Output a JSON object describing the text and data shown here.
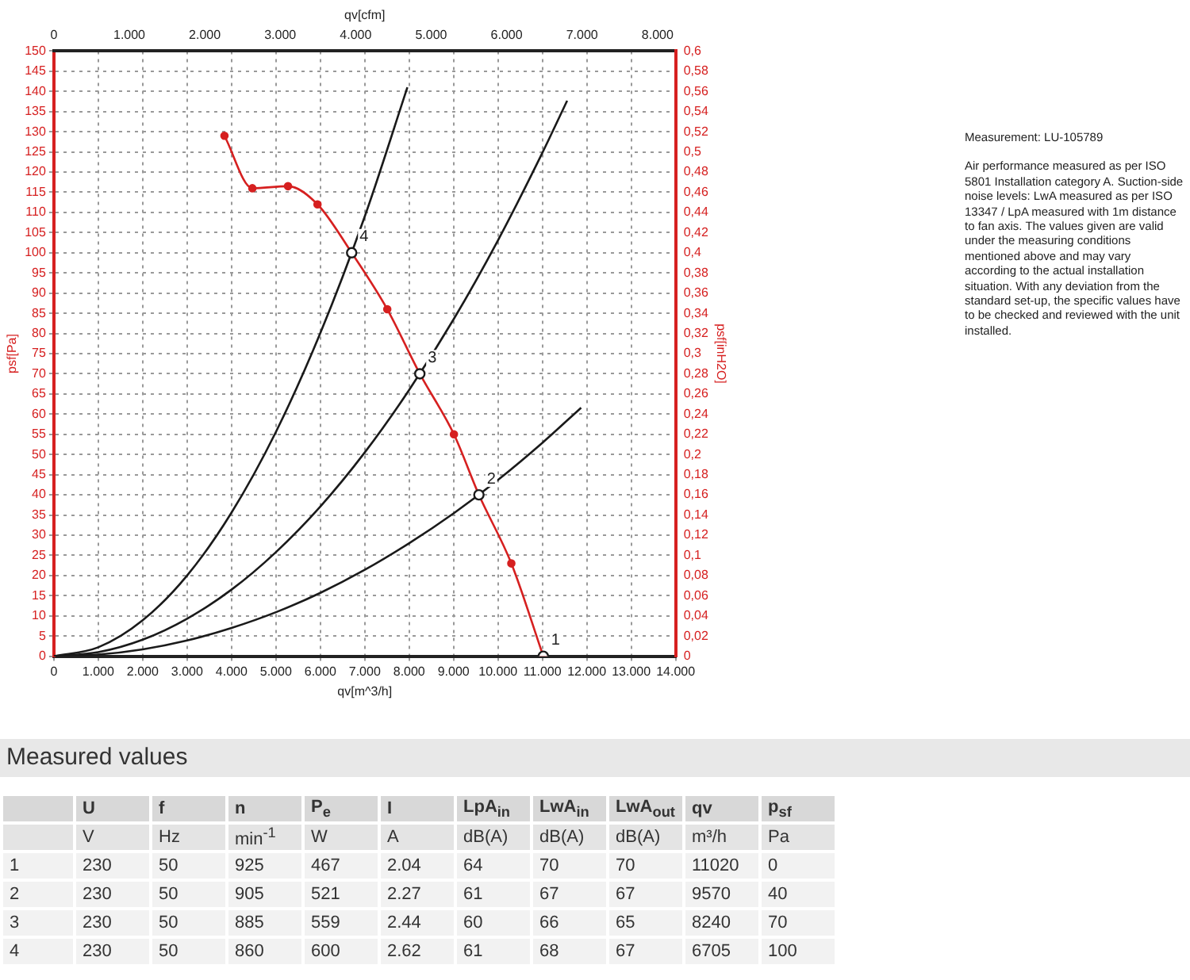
{
  "chart_data": {
    "type": "line",
    "xlabel": "qv[m^3/h]",
    "x2label": "qv[cfm]",
    "ylabel": "psf[Pa]",
    "y2label": "psf[inH2O]",
    "xlim": [
      0,
      14000
    ],
    "xticks": [
      0,
      {
        "value": 1000,
        "label": "1.000"
      },
      {
        "value": 2000,
        "label": "2.000"
      },
      {
        "value": 3000,
        "label": "3.000"
      },
      {
        "value": 4000,
        "label": "4.000"
      },
      {
        "value": 5000,
        "label": "5.000"
      },
      {
        "value": 6000,
        "label": "6.000"
      },
      {
        "value": 7000,
        "label": "7.000"
      },
      {
        "value": 8000,
        "label": "8.000"
      },
      {
        "value": 9000,
        "label": "9.000"
      },
      {
        "value": 10000,
        "label": "10.000"
      },
      {
        "value": 11000,
        "label": "11.000"
      },
      {
        "value": 12000,
        "label": "12.000"
      },
      {
        "value": 13000,
        "label": "13.000"
      },
      {
        "value": 14000,
        "label": "14.000"
      }
    ],
    "x2lim": [
      0,
      8240
    ],
    "x2ticks": [
      0,
      {
        "value": 1000,
        "label": "1.000"
      },
      {
        "value": 2000,
        "label": "2.000"
      },
      {
        "value": 3000,
        "label": "3.000"
      },
      {
        "value": 4000,
        "label": "4.000"
      },
      {
        "value": 5000,
        "label": "5.000"
      },
      {
        "value": 6000,
        "label": "6.000"
      },
      {
        "value": 7000,
        "label": "7.000"
      },
      {
        "value": 8000,
        "label": "8.000"
      }
    ],
    "ylim": [
      0,
      150
    ],
    "yticks": [
      0,
      5,
      10,
      15,
      20,
      25,
      30,
      35,
      40,
      45,
      50,
      55,
      60,
      65,
      70,
      75,
      80,
      85,
      90,
      95,
      100,
      105,
      110,
      115,
      120,
      125,
      130,
      135,
      140,
      145,
      150
    ],
    "y2lim": [
      0,
      0.6
    ],
    "y2ticks": [
      0,
      {
        "value": 0.02,
        "label": "0,02"
      },
      {
        "value": 0.04,
        "label": "0,04"
      },
      {
        "value": 0.06,
        "label": "0,06"
      },
      {
        "value": 0.08,
        "label": "0,08"
      },
      {
        "value": 0.1,
        "label": "0,1"
      },
      {
        "value": 0.12,
        "label": "0,12"
      },
      {
        "value": 0.14,
        "label": "0,14"
      },
      {
        "value": 0.16,
        "label": "0,16"
      },
      {
        "value": 0.18,
        "label": "0,18"
      },
      {
        "value": 0.2,
        "label": "0,2"
      },
      {
        "value": 0.22,
        "label": "0,22"
      },
      {
        "value": 0.24,
        "label": "0,24"
      },
      {
        "value": 0.26,
        "label": "0,26"
      },
      {
        "value": 0.28,
        "label": "0,28"
      },
      {
        "value": 0.3,
        "label": "0,3"
      },
      {
        "value": 0.32,
        "label": "0,32"
      },
      {
        "value": 0.34,
        "label": "0,34"
      },
      {
        "value": 0.36,
        "label": "0,36"
      },
      {
        "value": 0.38,
        "label": "0,38"
      },
      {
        "value": 0.4,
        "label": "0,4"
      },
      {
        "value": 0.42,
        "label": "0,42"
      },
      {
        "value": 0.44,
        "label": "0,44"
      },
      {
        "value": 0.46,
        "label": "0,46"
      },
      {
        "value": 0.48,
        "label": "0,48"
      },
      {
        "value": 0.5,
        "label": "0,5"
      },
      {
        "value": 0.52,
        "label": "0,52"
      },
      {
        "value": 0.54,
        "label": "0,54"
      },
      {
        "value": 0.56,
        "label": "0,56"
      },
      {
        "value": 0.58,
        "label": "0,58"
      },
      {
        "value": 0.6,
        "label": "0,6"
      }
    ],
    "grid": true,
    "legend": false,
    "series": [
      {
        "type": "line",
        "color": "#d62020",
        "marker": "circle",
        "x": [
          3841,
          4469,
          5272,
          5936,
          6705,
          7507,
          8240,
          9008,
          9570,
          10300,
          11020
        ],
        "values": [
          129,
          116,
          116.5,
          112,
          100,
          86,
          70,
          55,
          40,
          23,
          0
        ]
      },
      {
        "type": "line",
        "color": "#1a1a1a",
        "marker": "none",
        "x": [
          0,
          1000,
          2000,
          3000,
          4000,
          5000,
          6000,
          7000,
          7960
        ],
        "values": [
          0,
          2.2,
          8.9,
          20,
          35.6,
          55.6,
          80.1,
          109,
          141
        ]
      },
      {
        "type": "line",
        "color": "#1a1a1a",
        "marker": "none",
        "x": [
          0,
          1000,
          2000,
          3000,
          4000,
          5000,
          6000,
          7000,
          8000,
          9000,
          10000,
          11000,
          11557
        ],
        "values": [
          0,
          1,
          4.1,
          9.3,
          16.5,
          25.8,
          37.1,
          50.5,
          66,
          83.5,
          103.1,
          124.8,
          137.7
        ]
      },
      {
        "type": "line",
        "color": "#1a1a1a",
        "marker": "none",
        "x": [
          0,
          1000,
          2000,
          3000,
          4000,
          5000,
          6000,
          7000,
          8000,
          9000,
          10000,
          11000,
          11872
        ],
        "values": [
          0,
          0.4,
          1.7,
          3.9,
          7,
          10.9,
          15.7,
          21.4,
          28,
          35.4,
          43.7,
          52.9,
          61.6
        ]
      },
      {
        "type": "scatter",
        "color": "#1a1a1a",
        "marker": "circle",
        "x": [
          11020,
          9570,
          8240,
          6705
        ],
        "values": [
          0,
          40,
          70,
          100
        ]
      }
    ],
    "annotations": [
      {
        "text": "1",
        "x": 11020,
        "y": 0
      },
      {
        "text": "2",
        "x": 9570,
        "y": 40
      },
      {
        "text": "3",
        "x": 8240,
        "y": 70
      },
      {
        "text": "4",
        "x": 6705,
        "y": 100
      },
      "Measurement: LU-105789",
      "Air performance measured as per ISO 5801 Installation category A. Suction-side noise levels: LwA measured as per ISO 13347 / LpA measured with 1m distance to fan axis. The values given are valid under the measuring conditions mentioned above and may vary according to the actual installation situation. With any deviation from the standard set-up, the specific values have to be checked and reviewed with the unit installed.",
      "Measured values",
      "\tU\tf\tn\tP$_{e}$\tI\tLpA$_{in}$\tLwA$_{in}$\tLwA$_{out}$\tqv\tp$_{sf}$",
      "\tV\tHz\tmin$^{-1}$\tW\tA\tdB(A)\tdB(A)\tdB(A)\tm³/h\tPa",
      "1\t230\t50\t925\t467\t2.04\t64\t70\t70\t11020\t0",
      "2\t230\t50\t905\t521\t2.27\t61\t67\t67\t9570\t40",
      "3\t230\t50\t885\t559\t2.44\t60\t66\t65\t8240\t70",
      "4\t230\t50\t860\t600\t2.62\t61\t68\t67\t6705\t100"
    ]
  }
}
